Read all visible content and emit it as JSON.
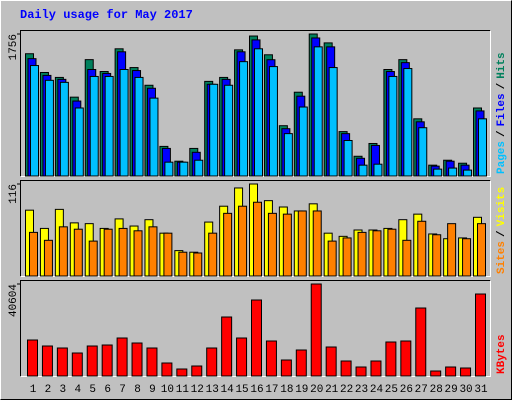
{
  "chart_data": [
    {
      "type": "bar",
      "title": "Daily usage for May 2017",
      "ylim": [
        0,
        1756
      ],
      "yticks": [
        1756
      ],
      "legend_separator": "/",
      "series": [
        {
          "name": "Hits",
          "color": "#00805c",
          "values": [
            1512,
            1280,
            1219,
            975,
            1439,
            1292,
            1573,
            1341,
            1122,
            366,
            183,
            341,
            1170,
            1219,
            1560,
            1731,
            1499,
            622,
            1036,
            1756,
            1646,
            549,
            244,
            402,
            1317,
            1439,
            707,
            134,
            195,
            158,
            841
          ]
        },
        {
          "name": "Files",
          "color": "#0000ff",
          "values": [
            1451,
            1244,
            1195,
            927,
            1317,
            1268,
            1536,
            1304,
            1085,
            341,
            171,
            293,
            1134,
            1195,
            1536,
            1683,
            1438,
            585,
            987,
            1707,
            1597,
            524,
            219,
            378,
            1292,
            1402,
            670,
            122,
            183,
            134,
            805
          ]
        },
        {
          "name": "Pages",
          "color": "#00c0ff",
          "values": [
            1366,
            1183,
            1158,
            841,
            1231,
            1231,
            1317,
            1219,
            963,
            171,
            171,
            195,
            1134,
            1122,
            1414,
            1573,
            1353,
            524,
            853,
            1597,
            1341,
            439,
            134,
            146,
            1231,
            1329,
            597,
            85,
            98,
            73,
            707
          ]
        }
      ]
    },
    {
      "type": "bar",
      "ylim": [
        0,
        116
      ],
      "yticks": [
        116
      ],
      "legend_separator": "/",
      "series": [
        {
          "name": "Visits",
          "color": "#ffff00",
          "values": [
            83,
            60,
            84,
            67,
            66,
            60,
            72,
            63,
            71,
            54,
            32,
            30,
            68,
            88,
            111,
            116,
            95,
            87,
            82,
            91,
            54,
            50,
            58,
            58,
            60,
            71,
            78,
            53,
            47,
            48,
            74
          ]
        },
        {
          "name": "Sites",
          "color": "#ff8000",
          "values": [
            55,
            45,
            62,
            59,
            44,
            59,
            60,
            57,
            62,
            54,
            30,
            29,
            54,
            79,
            88,
            93,
            79,
            78,
            82,
            82,
            44,
            48,
            55,
            57,
            59,
            45,
            69,
            52,
            66,
            47,
            66
          ]
        }
      ]
    },
    {
      "type": "bar",
      "ylim": [
        0,
        40604
      ],
      "yticks": [
        40604
      ],
      "categories": [
        "1",
        "2",
        "3",
        "4",
        "5",
        "6",
        "7",
        "8",
        "9",
        "10",
        "11",
        "12",
        "13",
        "14",
        "15",
        "16",
        "17",
        "18",
        "19",
        "20",
        "21",
        "22",
        "23",
        "24",
        "25",
        "26",
        "27",
        "28",
        "29",
        "30",
        "31"
      ],
      "category_colors": [
        "#000",
        "#000",
        "#000",
        "#000",
        "#000",
        "#00805c",
        "#00805c",
        "#000",
        "#000",
        "#000",
        "#000",
        "#000",
        "#00805c",
        "#00805c",
        "#000",
        "#000",
        "#000",
        "#000",
        "#000",
        "#00805c",
        "#00805c",
        "#000",
        "#000",
        "#000",
        "#000",
        "#000",
        "#00805c",
        "#00805c",
        "#000",
        "#000",
        "#000"
      ],
      "series": [
        {
          "name": "KBytes",
          "color": "#ff0000",
          "values": [
            15887,
            13239,
            12356,
            10150,
            13239,
            13680,
            16769,
            14563,
            12356,
            5737,
            3089,
            4413,
            12356,
            26037,
            16769,
            33539,
            15446,
            7061,
            11474,
            40604,
            12798,
            6620,
            3972,
            6620,
            15004,
            15446,
            30008,
            2207,
            3972,
            3530,
            36187
          ]
        }
      ]
    }
  ]
}
